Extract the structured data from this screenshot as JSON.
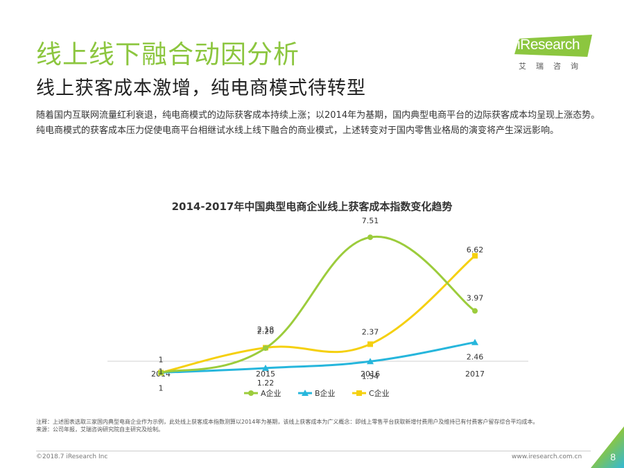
{
  "header": {
    "title": "线上线下融合动因分析",
    "subtitle": "线上获客成本激增，纯电商模式待转型"
  },
  "logo": {
    "word": "iResearch",
    "cn": "艾瑞咨询"
  },
  "intro": "随着国内互联网流量红利衰退，纯电商模式的边际获客成本持续上涨；以2014年为基期，国内典型电商平台的边际获客成本均呈现上涨态势。纯电商模式的获客成本压力促使电商平台相继试水线上线下融合的商业模式，上述转变对于国内零售业格局的演变将产生深远影响。",
  "chart_data": {
    "type": "line",
    "title": "2014-2017年中国典型电商企业线上获客成本指数变化趋势",
    "categories": [
      "2014",
      "2015",
      "2016",
      "2017"
    ],
    "series": [
      {
        "name": "A企业",
        "values": [
          1,
          2.18,
          7.51,
          3.97
        ],
        "color": "#9ccc3c",
        "marker": "circle",
        "labels": [
          "1",
          "2.18",
          "7.51",
          "3.97"
        ]
      },
      {
        "name": "B企业",
        "values": [
          1,
          1.22,
          1.54,
          2.46
        ],
        "color": "#26b6dc",
        "marker": "triangle",
        "labels": [
          "1",
          "1.22",
          "1.54",
          "2.46"
        ]
      },
      {
        "name": "C企业",
        "values": [
          1,
          2.2,
          2.37,
          6.62
        ],
        "color": "#f5d00f",
        "marker": "square",
        "labels": [
          "1",
          "2.20",
          "2.37",
          "6.62"
        ]
      }
    ],
    "grid": false,
    "legend": "bottom",
    "smooth": true
  },
  "notes": {
    "note": "注释：上述图表选取三家国内典型电商企业作为示例，此处线上获客成本指数测算以2014年为基期，该线上获客成本为广义概念：即线上零售平台获取新增付费用户及维持已有付费客户留存综合平均成本。",
    "source": "来源：公司年报，艾瑞咨询研究院自主研究及绘制。"
  },
  "footer": {
    "copyright": "©2018.7 iResearch Inc",
    "url": "www.iresearch.com.cn",
    "page": "8"
  },
  "colors": {
    "accent": "#8cc63f"
  }
}
